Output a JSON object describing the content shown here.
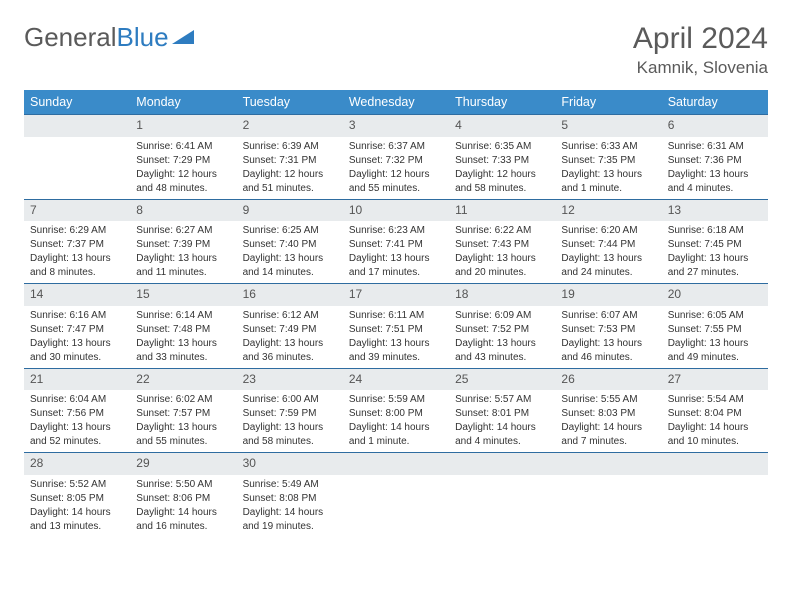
{
  "logo": {
    "text1": "General",
    "text2": "Blue"
  },
  "title": "April 2024",
  "location": "Kamnik, Slovenia",
  "colors": {
    "header_bg": "#3a8bc9",
    "header_text": "#ffffff",
    "daynum_bg": "#e8ebed",
    "border": "#2e6ca0",
    "logo_gray": "#5a5a5a",
    "logo_blue": "#2e7cc0"
  },
  "weekdays": [
    "Sunday",
    "Monday",
    "Tuesday",
    "Wednesday",
    "Thursday",
    "Friday",
    "Saturday"
  ],
  "weeks": [
    [
      {
        "n": "",
        "empty": true
      },
      {
        "n": "1",
        "sr": "Sunrise: 6:41 AM",
        "ss": "Sunset: 7:29 PM",
        "d1": "Daylight: 12 hours",
        "d2": "and 48 minutes."
      },
      {
        "n": "2",
        "sr": "Sunrise: 6:39 AM",
        "ss": "Sunset: 7:31 PM",
        "d1": "Daylight: 12 hours",
        "d2": "and 51 minutes."
      },
      {
        "n": "3",
        "sr": "Sunrise: 6:37 AM",
        "ss": "Sunset: 7:32 PM",
        "d1": "Daylight: 12 hours",
        "d2": "and 55 minutes."
      },
      {
        "n": "4",
        "sr": "Sunrise: 6:35 AM",
        "ss": "Sunset: 7:33 PM",
        "d1": "Daylight: 12 hours",
        "d2": "and 58 minutes."
      },
      {
        "n": "5",
        "sr": "Sunrise: 6:33 AM",
        "ss": "Sunset: 7:35 PM",
        "d1": "Daylight: 13 hours",
        "d2": "and 1 minute."
      },
      {
        "n": "6",
        "sr": "Sunrise: 6:31 AM",
        "ss": "Sunset: 7:36 PM",
        "d1": "Daylight: 13 hours",
        "d2": "and 4 minutes."
      }
    ],
    [
      {
        "n": "7",
        "sr": "Sunrise: 6:29 AM",
        "ss": "Sunset: 7:37 PM",
        "d1": "Daylight: 13 hours",
        "d2": "and 8 minutes."
      },
      {
        "n": "8",
        "sr": "Sunrise: 6:27 AM",
        "ss": "Sunset: 7:39 PM",
        "d1": "Daylight: 13 hours",
        "d2": "and 11 minutes."
      },
      {
        "n": "9",
        "sr": "Sunrise: 6:25 AM",
        "ss": "Sunset: 7:40 PM",
        "d1": "Daylight: 13 hours",
        "d2": "and 14 minutes."
      },
      {
        "n": "10",
        "sr": "Sunrise: 6:23 AM",
        "ss": "Sunset: 7:41 PM",
        "d1": "Daylight: 13 hours",
        "d2": "and 17 minutes."
      },
      {
        "n": "11",
        "sr": "Sunrise: 6:22 AM",
        "ss": "Sunset: 7:43 PM",
        "d1": "Daylight: 13 hours",
        "d2": "and 20 minutes."
      },
      {
        "n": "12",
        "sr": "Sunrise: 6:20 AM",
        "ss": "Sunset: 7:44 PM",
        "d1": "Daylight: 13 hours",
        "d2": "and 24 minutes."
      },
      {
        "n": "13",
        "sr": "Sunrise: 6:18 AM",
        "ss": "Sunset: 7:45 PM",
        "d1": "Daylight: 13 hours",
        "d2": "and 27 minutes."
      }
    ],
    [
      {
        "n": "14",
        "sr": "Sunrise: 6:16 AM",
        "ss": "Sunset: 7:47 PM",
        "d1": "Daylight: 13 hours",
        "d2": "and 30 minutes."
      },
      {
        "n": "15",
        "sr": "Sunrise: 6:14 AM",
        "ss": "Sunset: 7:48 PM",
        "d1": "Daylight: 13 hours",
        "d2": "and 33 minutes."
      },
      {
        "n": "16",
        "sr": "Sunrise: 6:12 AM",
        "ss": "Sunset: 7:49 PM",
        "d1": "Daylight: 13 hours",
        "d2": "and 36 minutes."
      },
      {
        "n": "17",
        "sr": "Sunrise: 6:11 AM",
        "ss": "Sunset: 7:51 PM",
        "d1": "Daylight: 13 hours",
        "d2": "and 39 minutes."
      },
      {
        "n": "18",
        "sr": "Sunrise: 6:09 AM",
        "ss": "Sunset: 7:52 PM",
        "d1": "Daylight: 13 hours",
        "d2": "and 43 minutes."
      },
      {
        "n": "19",
        "sr": "Sunrise: 6:07 AM",
        "ss": "Sunset: 7:53 PM",
        "d1": "Daylight: 13 hours",
        "d2": "and 46 minutes."
      },
      {
        "n": "20",
        "sr": "Sunrise: 6:05 AM",
        "ss": "Sunset: 7:55 PM",
        "d1": "Daylight: 13 hours",
        "d2": "and 49 minutes."
      }
    ],
    [
      {
        "n": "21",
        "sr": "Sunrise: 6:04 AM",
        "ss": "Sunset: 7:56 PM",
        "d1": "Daylight: 13 hours",
        "d2": "and 52 minutes."
      },
      {
        "n": "22",
        "sr": "Sunrise: 6:02 AM",
        "ss": "Sunset: 7:57 PM",
        "d1": "Daylight: 13 hours",
        "d2": "and 55 minutes."
      },
      {
        "n": "23",
        "sr": "Sunrise: 6:00 AM",
        "ss": "Sunset: 7:59 PM",
        "d1": "Daylight: 13 hours",
        "d2": "and 58 minutes."
      },
      {
        "n": "24",
        "sr": "Sunrise: 5:59 AM",
        "ss": "Sunset: 8:00 PM",
        "d1": "Daylight: 14 hours",
        "d2": "and 1 minute."
      },
      {
        "n": "25",
        "sr": "Sunrise: 5:57 AM",
        "ss": "Sunset: 8:01 PM",
        "d1": "Daylight: 14 hours",
        "d2": "and 4 minutes."
      },
      {
        "n": "26",
        "sr": "Sunrise: 5:55 AM",
        "ss": "Sunset: 8:03 PM",
        "d1": "Daylight: 14 hours",
        "d2": "and 7 minutes."
      },
      {
        "n": "27",
        "sr": "Sunrise: 5:54 AM",
        "ss": "Sunset: 8:04 PM",
        "d1": "Daylight: 14 hours",
        "d2": "and 10 minutes."
      }
    ],
    [
      {
        "n": "28",
        "sr": "Sunrise: 5:52 AM",
        "ss": "Sunset: 8:05 PM",
        "d1": "Daylight: 14 hours",
        "d2": "and 13 minutes."
      },
      {
        "n": "29",
        "sr": "Sunrise: 5:50 AM",
        "ss": "Sunset: 8:06 PM",
        "d1": "Daylight: 14 hours",
        "d2": "and 16 minutes."
      },
      {
        "n": "30",
        "sr": "Sunrise: 5:49 AM",
        "ss": "Sunset: 8:08 PM",
        "d1": "Daylight: 14 hours",
        "d2": "and 19 minutes."
      },
      {
        "n": "",
        "empty": true
      },
      {
        "n": "",
        "empty": true
      },
      {
        "n": "",
        "empty": true
      },
      {
        "n": "",
        "empty": true
      }
    ]
  ]
}
